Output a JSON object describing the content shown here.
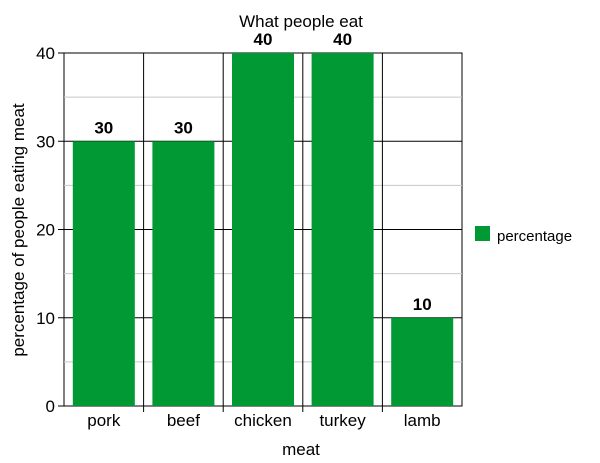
{
  "chart_data": {
    "type": "bar",
    "title": "What people eat",
    "xlabel": "meat",
    "ylabel": "percentage of people eating meat",
    "categories": [
      "pork",
      "beef",
      "chicken",
      "turkey",
      "lamb"
    ],
    "series": [
      {
        "name": "percentage",
        "values": [
          30,
          30,
          40,
          40,
          10
        ],
        "color": "#009933"
      }
    ],
    "ylim": [
      0,
      40
    ],
    "yticks": [
      0,
      10,
      20,
      30,
      40
    ],
    "data_labels": true,
    "grid": true,
    "legend_position": "right"
  }
}
